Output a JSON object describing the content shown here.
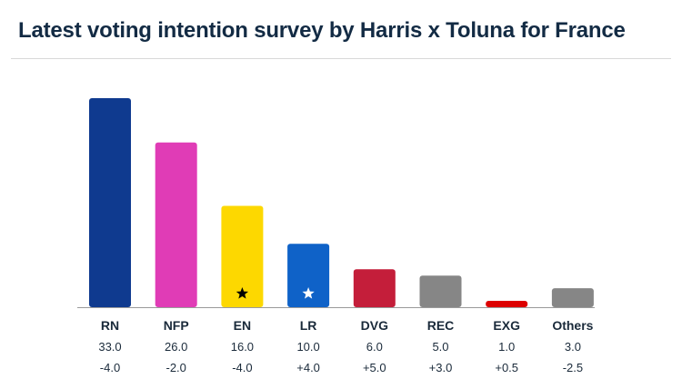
{
  "title": "Latest voting intention survey by Harris x Toluna for France",
  "chart_data": {
    "type": "bar",
    "categories": [
      "RN",
      "NFP",
      "EN",
      "LR",
      "DVG",
      "REC",
      "EXG",
      "Others"
    ],
    "values": [
      33.0,
      26.0,
      16.0,
      10.0,
      6.0,
      5.0,
      1.0,
      3.0
    ],
    "changes": [
      "-4.0",
      "-2.0",
      "-4.0",
      "+4.0",
      "+5.0",
      "+3.0",
      "+0.5",
      "-2.5"
    ],
    "value_labels": [
      "33.0",
      "26.0",
      "16.0",
      "10.0",
      "6.0",
      "5.0",
      "1.0",
      "3.0"
    ],
    "colors": [
      "#0f3a8f",
      "#e03cb6",
      "#fdd800",
      "#0f62c8",
      "#c41e3a",
      "#868686",
      "#dd0000",
      "#868686"
    ],
    "markers": [
      "",
      "",
      "star-black",
      "star-white",
      "",
      "",
      "",
      ""
    ],
    "ylim": [
      0,
      33.0
    ],
    "grid": false,
    "legend": "none"
  }
}
